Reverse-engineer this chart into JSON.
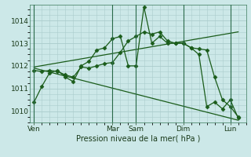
{
  "background_color": "#cce8e8",
  "grid_color": "#aacccc",
  "line_color": "#1a5c1a",
  "vline_color": "#2a6a4a",
  "title": "Pression niveau de la mer( hPa )",
  "ylim": [
    1009.5,
    1014.7
  ],
  "yticks": [
    1010,
    1011,
    1012,
    1013,
    1014
  ],
  "x_tick_labels": [
    "Ven",
    "Mar",
    "Sam",
    "Dim",
    "Lun"
  ],
  "x_tick_positions": [
    0,
    10,
    13,
    19,
    25
  ],
  "xlim": [
    -0.5,
    27
  ],
  "total_points": 27,
  "series1_x": [
    0,
    1,
    2,
    3,
    4,
    5,
    6,
    7,
    8,
    9,
    10,
    11,
    12,
    13,
    14,
    15,
    16,
    17,
    18,
    19,
    20,
    21,
    22,
    23,
    24,
    25,
    26
  ],
  "series1_y": [
    1010.4,
    1011.1,
    1011.7,
    1011.8,
    1011.5,
    1011.3,
    1012.0,
    1012.2,
    1012.7,
    1012.8,
    1013.2,
    1013.3,
    1012.0,
    1012.0,
    1014.6,
    1013.0,
    1013.3,
    1013.0,
    1013.0,
    1013.0,
    1012.8,
    1012.5,
    1010.2,
    1010.4,
    1010.1,
    1010.5,
    1009.7
  ],
  "series2_x": [
    0,
    1,
    2,
    3,
    4,
    5,
    6,
    7,
    8,
    9,
    10,
    11,
    12,
    13,
    14,
    15,
    16,
    17,
    18,
    19,
    20,
    21,
    22,
    23,
    24,
    25,
    26
  ],
  "series2_y": [
    1011.8,
    1011.75,
    1011.8,
    1011.75,
    1011.6,
    1011.5,
    1011.95,
    1011.9,
    1012.0,
    1012.1,
    1012.15,
    1012.6,
    1013.1,
    1013.3,
    1013.5,
    1013.4,
    1013.5,
    1013.1,
    1013.0,
    1013.0,
    1012.8,
    1012.75,
    1012.7,
    1011.5,
    1010.5,
    1010.2,
    1009.75
  ],
  "trend1_x": [
    0,
    26
  ],
  "trend1_y": [
    1011.95,
    1013.5
  ],
  "trend2_x": [
    0,
    26
  ],
  "trend2_y": [
    1011.9,
    1009.6
  ],
  "vline_positions": [
    0,
    10,
    13,
    19,
    25
  ],
  "ylabel_fontsize": 7,
  "tick_fontsize": 6.5
}
